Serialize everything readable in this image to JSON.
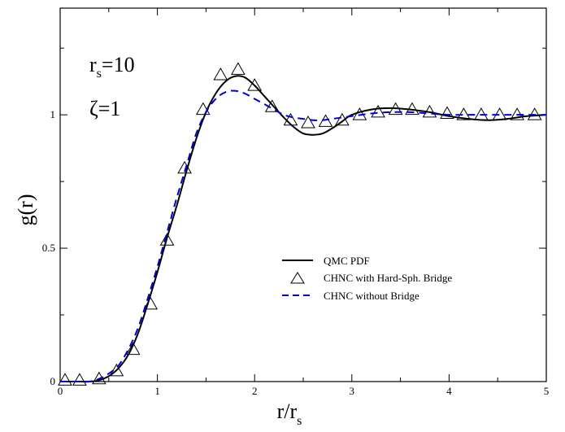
{
  "chart_data": {
    "type": "line",
    "xlabel": {
      "main": "r/r",
      "sub": "s"
    },
    "ylabel": "g(r)",
    "xlim": [
      0,
      5
    ],
    "ylim": [
      0,
      1.4
    ],
    "x_ticks": [
      "0",
      "1",
      "2",
      "3",
      "4",
      "5"
    ],
    "y_ticks": [
      "0",
      "0.5",
      "1"
    ],
    "annotations": {
      "rs": {
        "base": "r",
        "sub": "s",
        "rest": "=10"
      },
      "zeta": "ζ=1"
    },
    "series": [
      {
        "name": "QMC PDF",
        "style": "solid",
        "color": "#000000",
        "x": [
          0,
          0.2,
          0.3,
          0.4,
          0.5,
          0.6,
          0.7,
          0.8,
          0.9,
          1.0,
          1.1,
          1.2,
          1.3,
          1.4,
          1.5,
          1.6,
          1.7,
          1.8,
          1.9,
          2.0,
          2.1,
          2.2,
          2.3,
          2.4,
          2.5,
          2.6,
          2.7,
          2.8,
          2.9,
          3.0,
          3.2,
          3.4,
          3.6,
          3.8,
          4.0,
          4.2,
          4.4,
          4.6,
          4.8,
          5.0
        ],
        "y": [
          0.0,
          0.0,
          0.0,
          0.005,
          0.02,
          0.05,
          0.1,
          0.18,
          0.29,
          0.41,
          0.54,
          0.66,
          0.79,
          0.91,
          1.01,
          1.08,
          1.125,
          1.145,
          1.14,
          1.11,
          1.07,
          1.03,
          0.99,
          0.955,
          0.93,
          0.925,
          0.93,
          0.95,
          0.975,
          1.0,
          1.02,
          1.025,
          1.02,
          1.01,
          0.995,
          0.985,
          0.98,
          0.985,
          0.995,
          1.0
        ]
      },
      {
        "name": "CHNC with Hard-Sph. Bridge",
        "style": "triangles",
        "color": "#000000",
        "x": [
          0.05,
          0.2,
          0.4,
          0.58,
          0.75,
          0.93,
          1.1,
          1.28,
          1.47,
          1.65,
          1.83,
          2.0,
          2.18,
          2.37,
          2.55,
          2.73,
          2.9,
          3.08,
          3.27,
          3.45,
          3.62,
          3.8,
          3.98,
          4.15,
          4.33,
          4.52,
          4.7,
          4.88,
          5.05
        ],
        "y": [
          0.005,
          0.005,
          0.01,
          0.04,
          0.12,
          0.29,
          0.53,
          0.8,
          1.02,
          1.15,
          1.17,
          1.11,
          1.03,
          0.98,
          0.97,
          0.975,
          0.98,
          1.0,
          1.01,
          1.02,
          1.02,
          1.01,
          1.005,
          1.0,
          1.0,
          1.0,
          1.0,
          1.0,
          1.0
        ]
      },
      {
        "name": "CHNC without  Bridge",
        "style": "dashed",
        "color": "#0000cc",
        "x": [
          0,
          0.2,
          0.3,
          0.4,
          0.5,
          0.6,
          0.7,
          0.8,
          0.9,
          1.0,
          1.1,
          1.2,
          1.3,
          1.4,
          1.5,
          1.6,
          1.7,
          1.8,
          1.9,
          2.0,
          2.1,
          2.2,
          2.3,
          2.4,
          2.5,
          2.6,
          2.7,
          2.8,
          3.0,
          3.2,
          3.4,
          3.6,
          3.8,
          4.0,
          4.2,
          4.4,
          4.6,
          4.8,
          5.0
        ],
        "y": [
          0.0,
          0.0,
          0.0,
          0.01,
          0.03,
          0.06,
          0.12,
          0.2,
          0.31,
          0.43,
          0.56,
          0.69,
          0.81,
          0.93,
          1.01,
          1.06,
          1.085,
          1.09,
          1.08,
          1.06,
          1.04,
          1.02,
          1.0,
          0.99,
          0.985,
          0.98,
          0.98,
          0.985,
          0.995,
          1.005,
          1.01,
          1.01,
          1.005,
          1.0,
          1.0,
          1.0,
          1.0,
          1.0,
          1.0
        ]
      }
    ]
  }
}
